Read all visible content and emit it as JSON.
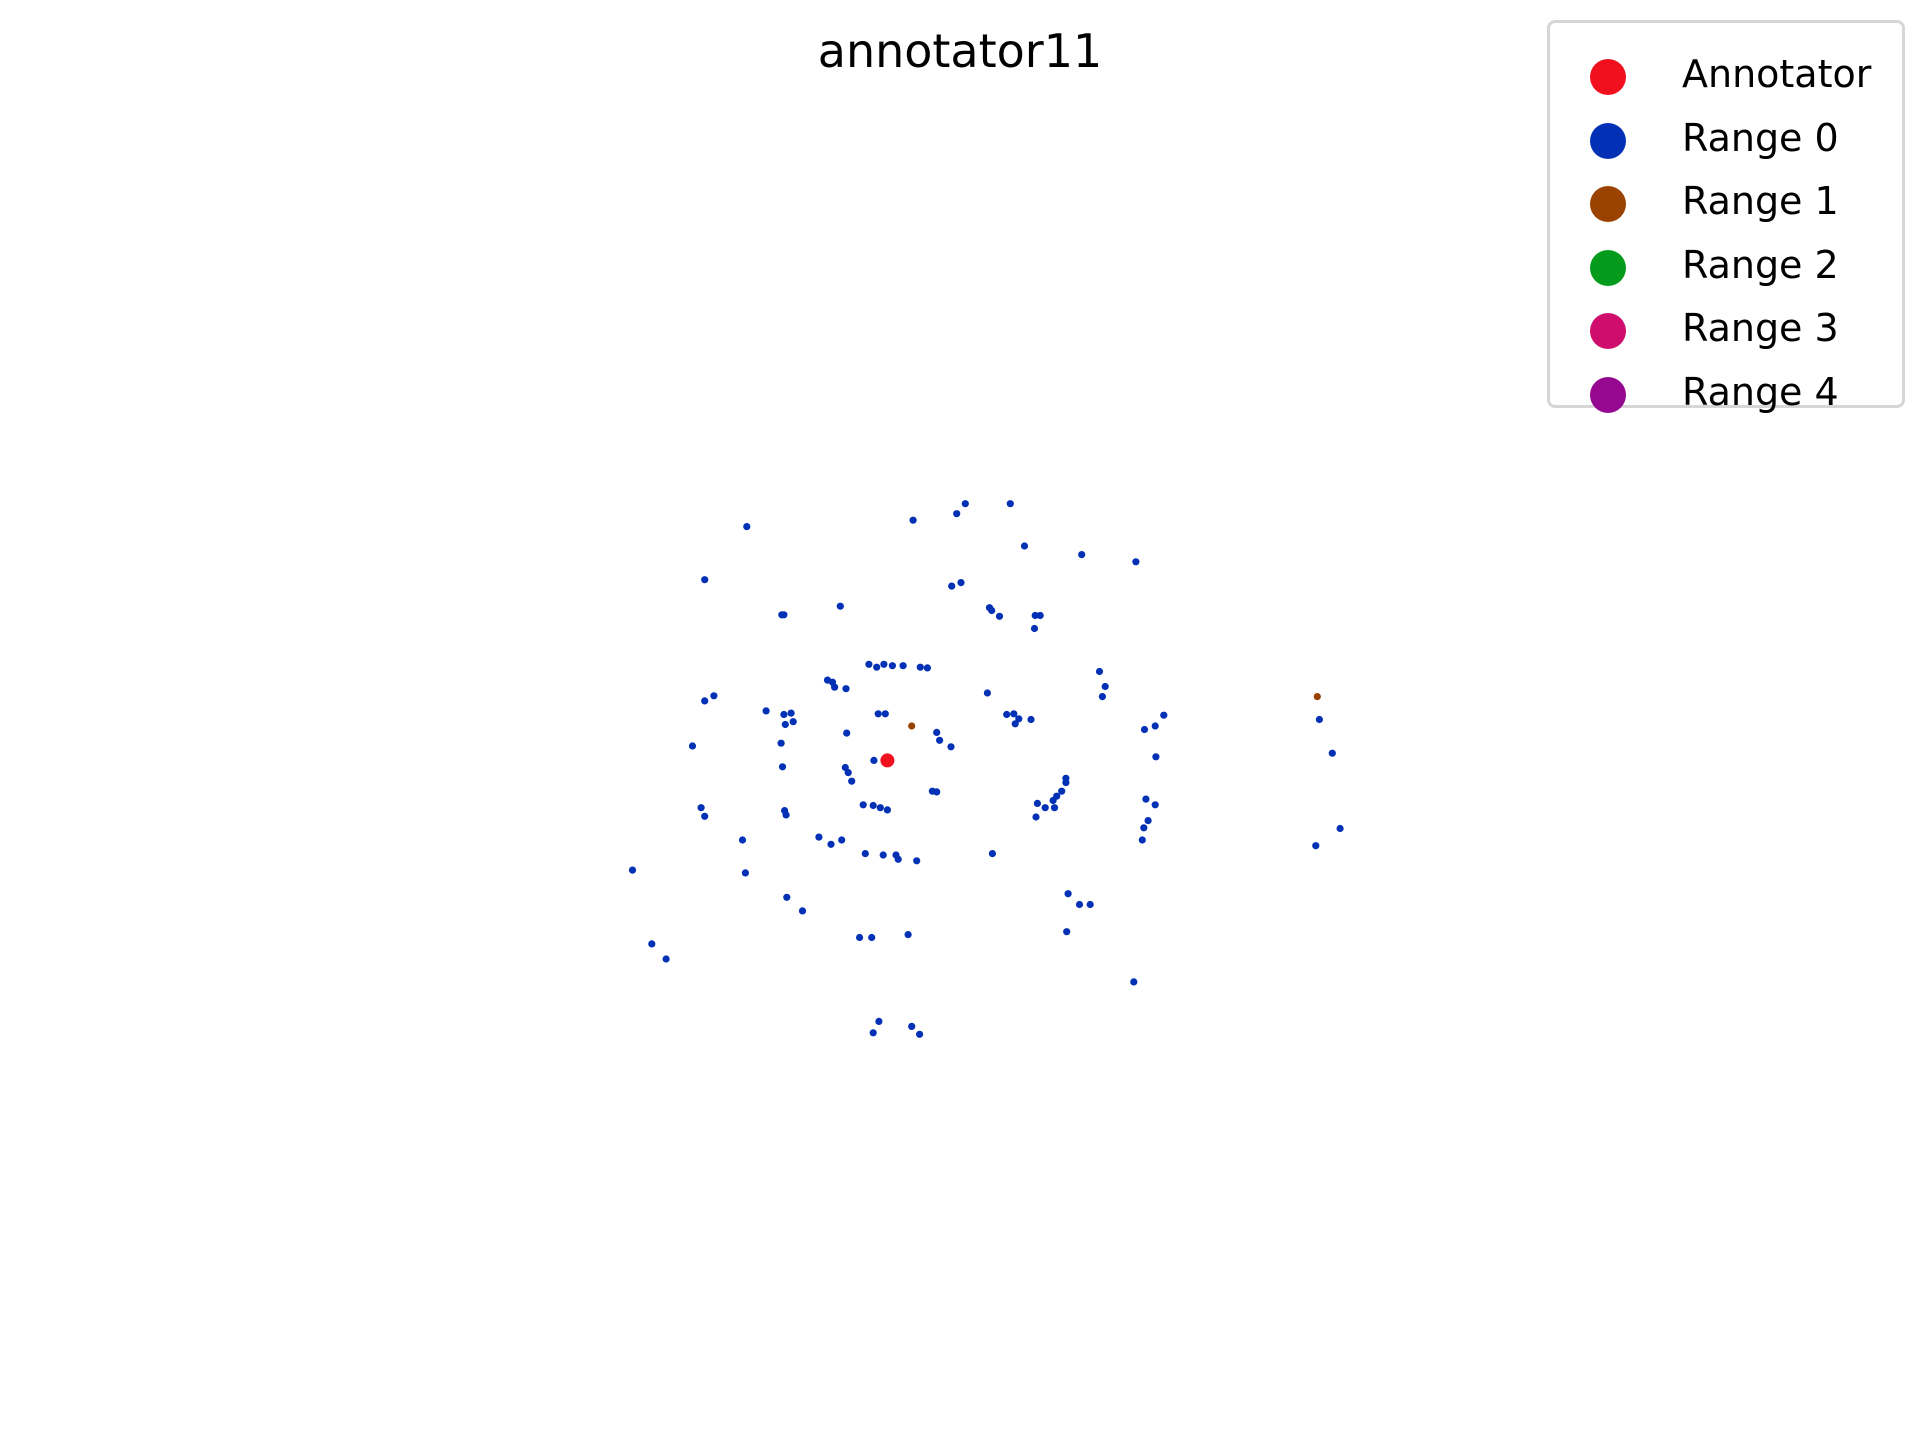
{
  "chart_data": {
    "type": "scatter",
    "title": "annotator11",
    "xlabel": "",
    "ylabel": "",
    "axes_visible": false,
    "grid": false,
    "legend_placement": "top-right",
    "xlim": [
      -10,
      10
    ],
    "ylim": [
      -7.5,
      7.5
    ],
    "legend": [
      {
        "label": "Annotator",
        "color": "#f0101e"
      },
      {
        "label": "Range 0",
        "color": "#0331b5"
      },
      {
        "label": "Range 1",
        "color": "#9a4200"
      },
      {
        "label": "Range 2",
        "color": "#049a1c"
      },
      {
        "label": "Range 3",
        "color": "#cf0d6c"
      },
      {
        "label": "Range 4",
        "color": "#95088f"
      }
    ],
    "series": [
      {
        "name": "Annotator",
        "color": "#f0101e",
        "points": [
          [
            -0.47,
            -0.34
          ]
        ]
      },
      {
        "name": "Range 0",
        "color": "#0331b5",
        "points": [
          [
            0.5,
            3.1
          ],
          [
            0.62,
            3.24
          ],
          [
            1.25,
            3.24
          ],
          [
            1.45,
            2.65
          ],
          [
            2.25,
            2.53
          ],
          [
            3.01,
            2.43
          ],
          [
            -2.44,
            2.92
          ],
          [
            -3.03,
            2.18
          ],
          [
            0.43,
            2.09
          ],
          [
            0.96,
            1.79
          ],
          [
            0.99,
            1.75
          ],
          [
            1.1,
            1.67
          ],
          [
            1.6,
            1.68
          ],
          [
            1.67,
            1.68
          ],
          [
            1.59,
            1.5
          ],
          [
            -1.95,
            1.69
          ],
          [
            -1.92,
            1.69
          ],
          [
            -1.13,
            1.81
          ],
          [
            -0.73,
            1.0
          ],
          [
            -0.62,
            0.96
          ],
          [
            -0.52,
            1.0
          ],
          [
            -0.4,
            0.98
          ],
          [
            -0.25,
            0.98
          ],
          [
            -0.01,
            0.96
          ],
          [
            0.09,
            0.95
          ],
          [
            -1.31,
            0.78
          ],
          [
            -1.24,
            0.75
          ],
          [
            -1.21,
            0.68
          ],
          [
            -1.05,
            0.66
          ],
          [
            0.93,
            0.6
          ],
          [
            2.5,
            0.9
          ],
          [
            2.58,
            0.69
          ],
          [
            2.54,
            0.55
          ],
          [
            -3.03,
            0.49
          ],
          [
            -2.9,
            0.56
          ],
          [
            -1.82,
            0.32
          ],
          [
            -1.79,
            0.2
          ],
          [
            -1.92,
            0.3
          ],
          [
            -1.9,
            0.16
          ],
          [
            1.2,
            0.3
          ],
          [
            1.3,
            0.31
          ],
          [
            1.32,
            0.17
          ],
          [
            1.37,
            0.24
          ],
          [
            1.54,
            0.23
          ],
          [
            -1.04,
            0.04
          ],
          [
            -0.6,
            0.31
          ],
          [
            -0.5,
            0.31
          ],
          [
            0.22,
            0.05
          ],
          [
            0.26,
            -0.06
          ],
          [
            0.42,
            -0.15
          ],
          [
            -3.2,
            -0.14
          ],
          [
            -1.96,
            -0.1
          ],
          [
            -0.66,
            -0.34
          ],
          [
            -1.06,
            -0.44
          ],
          [
            -1.02,
            -0.51
          ],
          [
            -0.97,
            -0.63
          ],
          [
            -1.94,
            -0.43
          ],
          [
            -0.81,
            -0.96
          ],
          [
            -0.67,
            -0.97
          ],
          [
            -0.57,
            -1.0
          ],
          [
            -0.47,
            -1.03
          ],
          [
            0.16,
            -0.77
          ],
          [
            0.22,
            -0.78
          ],
          [
            1.63,
            -0.94
          ],
          [
            1.74,
            -1.0
          ],
          [
            1.85,
            -0.9
          ],
          [
            1.9,
            -0.84
          ],
          [
            1.97,
            -0.77
          ],
          [
            2.03,
            -0.65
          ],
          [
            2.03,
            -0.59
          ],
          [
            1.87,
            -1.0
          ],
          [
            1.61,
            -1.13
          ],
          [
            -1.91,
            -1.04
          ],
          [
            -1.89,
            -1.1
          ],
          [
            -1.43,
            -1.41
          ],
          [
            -1.26,
            -1.51
          ],
          [
            -1.11,
            -1.45
          ],
          [
            -0.78,
            -1.64
          ],
          [
            -0.53,
            -1.66
          ],
          [
            -0.35,
            -1.66
          ],
          [
            -0.32,
            -1.72
          ],
          [
            -0.06,
            -1.74
          ],
          [
            1.0,
            -1.64
          ],
          [
            -3.08,
            -1.0
          ],
          [
            -3.03,
            -1.12
          ],
          [
            3.13,
            0.09
          ],
          [
            3.28,
            0.14
          ],
          [
            3.4,
            0.29
          ],
          [
            3.29,
            -0.29
          ],
          [
            3.15,
            -0.88
          ],
          [
            3.28,
            -0.96
          ],
          [
            3.18,
            -1.18
          ],
          [
            3.12,
            -1.28
          ],
          [
            3.1,
            -1.45
          ],
          [
            2.06,
            -2.2
          ],
          [
            2.22,
            -2.35
          ],
          [
            2.37,
            -2.35
          ],
          [
            -2.5,
            -1.45
          ],
          [
            -2.46,
            -1.91
          ],
          [
            -1.88,
            -2.25
          ],
          [
            -1.66,
            -2.44
          ],
          [
            -0.86,
            -2.81
          ],
          [
            -0.69,
            -2.81
          ],
          [
            -0.18,
            -2.77
          ],
          [
            2.04,
            -2.73
          ],
          [
            -4.04,
            -1.87
          ],
          [
            -3.77,
            -2.9
          ],
          [
            -3.57,
            -3.11
          ],
          [
            2.98,
            -3.43
          ],
          [
            -0.59,
            -3.98
          ],
          [
            -0.67,
            -4.14
          ],
          [
            -0.13,
            -4.05
          ],
          [
            -0.02,
            -4.16
          ],
          [
            5.53,
            -1.53
          ],
          [
            5.87,
            -1.29
          ],
          [
            5.76,
            -0.24
          ],
          [
            5.58,
            0.23
          ],
          [
            -0.11,
            3.01
          ],
          [
            0.56,
            2.14
          ],
          [
            -2.17,
            0.35
          ]
        ]
      },
      {
        "name": "Range 1",
        "color": "#9a4200",
        "points": [
          [
            -0.13,
            0.14
          ],
          [
            5.55,
            0.55
          ]
        ]
      }
    ]
  }
}
